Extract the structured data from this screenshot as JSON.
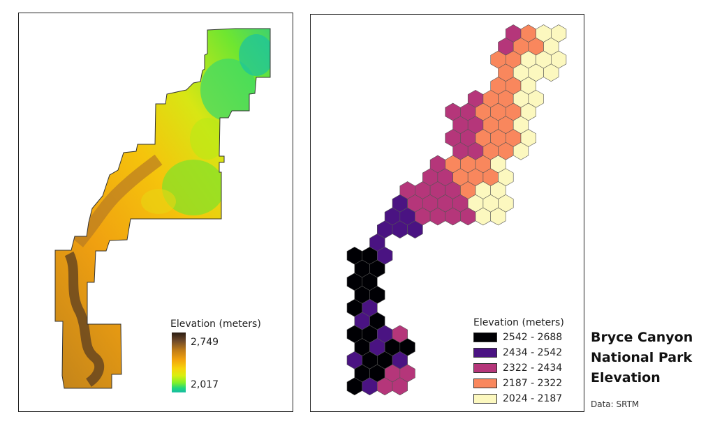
{
  "title": {
    "line1": "Bryce Canyon",
    "line2": "National Park",
    "line3": "Elevation"
  },
  "source": "Data: SRTM",
  "continuous_map": {
    "legend": {
      "title": "Elevation (meters)",
      "max": "2,749",
      "min": "2,017",
      "colors": [
        "#2a1c12",
        "#6f4a2a",
        "#c27d17",
        "#f2a20c",
        "#f7d40a",
        "#d9ef0f",
        "#7ef02a",
        "#1ed67e",
        "#19bba3"
      ]
    }
  },
  "hex_map": {
    "legend": {
      "title": "Elevation (meters)",
      "classes": [
        {
          "label": "2542 - 2688",
          "color": "#000004"
        },
        {
          "label": "2434 - 2542",
          "color": "#4a1382"
        },
        {
          "label": "2322 - 2434",
          "color": "#b5367a"
        },
        {
          "label": "2187 - 2322",
          "color": "#f9875d"
        },
        {
          "label": "2024 - 2187",
          "color": "#fcf8bf"
        }
      ]
    }
  }
}
